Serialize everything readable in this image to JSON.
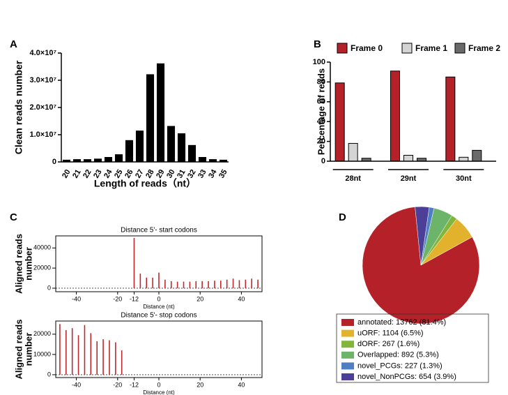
{
  "chart_data": [
    {
      "type": "bar",
      "panel": "A",
      "ylabel": "Clean reads number",
      "xlabel": "Length of reads（nt）",
      "categories": [
        "20",
        "21",
        "22",
        "23",
        "24",
        "25",
        "26",
        "27",
        "28",
        "29",
        "30",
        "31",
        "32",
        "33",
        "34",
        "35"
      ],
      "values": [
        800000,
        1000000,
        1000000,
        1200000,
        1800000,
        2800000,
        8000000,
        11500000,
        32200000,
        36200000,
        13200000,
        10500000,
        6200000,
        1800000,
        1000000,
        800000
      ],
      "color": "#000000",
      "ylim": [
        0,
        40000000
      ],
      "yticks": [
        0,
        {
          "value": 10000000,
          "label": "1.0×10⁷"
        },
        {
          "value": 20000000,
          "label": "2.0×10⁷"
        },
        {
          "value": 30000000,
          "label": "3.0×10⁷"
        },
        {
          "value": 40000000,
          "label": "4.0×10⁷"
        }
      ]
    },
    {
      "type": "grouped_bar",
      "panel": "B",
      "ylabel": "Percentage of reads",
      "categories": [
        "28nt",
        "29nt",
        "30nt"
      ],
      "series": [
        {
          "name": "Frame 0",
          "color": "#b52129",
          "values": [
            79,
            91,
            85
          ]
        },
        {
          "name": "Frame 1",
          "color": "#d4d4d4",
          "values": [
            18,
            6,
            4
          ]
        },
        {
          "name": "Frame 2",
          "color": "#6a6a6a",
          "values": [
            3,
            3,
            11
          ]
        }
      ],
      "ylim": [
        0,
        100
      ],
      "yticks": [
        0,
        20,
        40,
        60,
        80,
        100
      ],
      "legend": "top"
    },
    {
      "type": "spike",
      "panel": "C",
      "title": "Distance 5'- start codons",
      "xlabel": "Distance (nt)",
      "ylabel": [
        "Aligned reads",
        "number"
      ],
      "x": [
        -12,
        -9,
        -6,
        -3,
        0,
        3,
        6,
        9,
        12,
        15,
        18,
        21,
        24,
        27,
        30,
        33,
        36,
        39,
        42,
        45,
        48
      ],
      "values": [
        50000,
        14500,
        10500,
        10500,
        15500,
        8500,
        7000,
        6500,
        6500,
        6500,
        7000,
        7000,
        7000,
        7500,
        7500,
        8500,
        9500,
        8000,
        8500,
        9500,
        8500
      ],
      "color": "#c0272d",
      "xlim": [
        -50,
        50
      ],
      "xticks": [
        -40,
        -20,
        -12,
        0,
        20,
        40
      ],
      "ylim": [
        -3500,
        52000
      ],
      "yticks": [
        0,
        20000,
        40000
      ]
    },
    {
      "type": "spike",
      "title": "Distance 5'- stop codons",
      "xlabel": "Distance (nt)",
      "ylabel": [
        "Aligned reads",
        "number"
      ],
      "x": [
        -48,
        -45,
        -42,
        -39,
        -36,
        -33,
        -30,
        -27,
        -24,
        -21,
        -18
      ],
      "values": [
        25000,
        22000,
        23000,
        19500,
        24500,
        20500,
        16500,
        17500,
        17000,
        16000,
        12000
      ],
      "color": "#c0272d",
      "xlim": [
        -50,
        50
      ],
      "xticks": [
        -40,
        -20,
        -12,
        0,
        20,
        40
      ],
      "ylim": [
        -1400,
        26500
      ],
      "yticks": [
        0,
        10000,
        20000
      ]
    },
    {
      "type": "pie",
      "panel": "D",
      "labels": [
        "annotated: 13762 (81.4%)",
        "uORF: 1104 (6.5%)",
        "dORF: 267 (1.6%)",
        "Overlapped: 892 (5.3%)",
        "novel_PCGs: 227 (1.3%)",
        "novel_NonPCGs: 654 (3.9%)"
      ],
      "values": [
        13762,
        1104,
        267,
        892,
        227,
        654
      ],
      "colors": [
        "#b52129",
        "#e3b22d",
        "#82b63a",
        "#6db46b",
        "#4f7ec4",
        "#4b3f97"
      ]
    }
  ]
}
